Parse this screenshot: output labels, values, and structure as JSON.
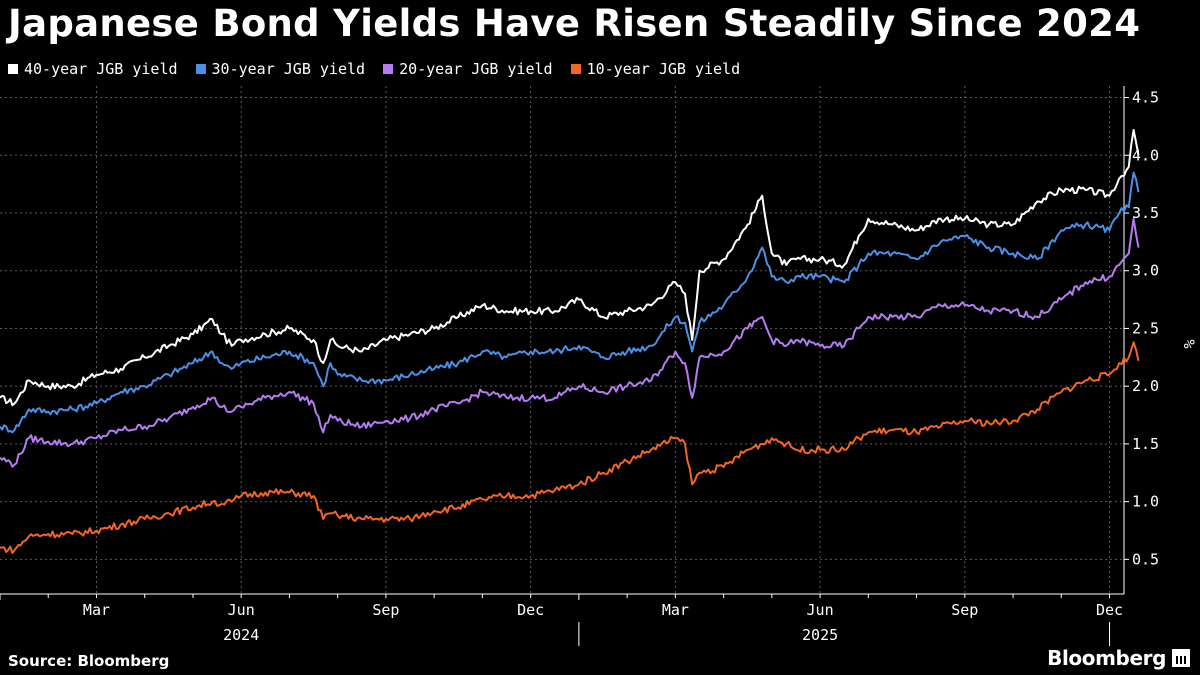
{
  "title": "Japanese Bond Yields Have Risen Steadily Since 2024",
  "source": "Source: Bloomberg",
  "brand": "Bloomberg",
  "chart_data": {
    "type": "line",
    "title": "Japanese Bond Yields Have Risen Steadily Since 2024",
    "ylabel": "%",
    "xlabel": "",
    "ylim": [
      0.2,
      4.6
    ],
    "xlim": [
      0,
      23.3
    ],
    "x_unit": "months since 2024-01-01",
    "y_ticks": [
      0.5,
      1.0,
      1.5,
      2.0,
      2.5,
      3.0,
      3.5,
      4.0,
      4.5
    ],
    "y_tick_labels": [
      "0.5",
      "1.0",
      "1.5",
      "2.0",
      "2.5",
      "3.0",
      "3.5",
      "4.0",
      "4.5"
    ],
    "x_ticks": [
      {
        "pos": 2,
        "label": "Mar"
      },
      {
        "pos": 5,
        "label": "Jun"
      },
      {
        "pos": 8,
        "label": "Sep"
      },
      {
        "pos": 11,
        "label": "Dec"
      },
      {
        "pos": 14,
        "label": "Mar"
      },
      {
        "pos": 17,
        "label": "Jun"
      },
      {
        "pos": 20,
        "label": "Sep"
      },
      {
        "pos": 23,
        "label": "Dec"
      }
    ],
    "x_years": [
      {
        "pos": 5,
        "label": "2024"
      },
      {
        "pos": 17,
        "label": "2025"
      }
    ],
    "year_boundary": 12,
    "grid": true,
    "legend": "top-left",
    "series": [
      {
        "name": "40-year JGB yield",
        "color": "#ffffff",
        "x": [
          0,
          0.3,
          0.6,
          1,
          1.5,
          2,
          2.5,
          3,
          3.5,
          4,
          4.4,
          4.6,
          4.8,
          5,
          5.5,
          6,
          6.5,
          6.7,
          6.85,
          7,
          7.5,
          8,
          8.5,
          9,
          9.5,
          10,
          10.5,
          11,
          11.5,
          12,
          12.5,
          13,
          13.5,
          14,
          14.2,
          14.35,
          14.5,
          15,
          15.5,
          15.8,
          16,
          16.3,
          16.5,
          17,
          17.5,
          17.8,
          18,
          18.5,
          19,
          19.5,
          20,
          20.5,
          21,
          21.5,
          22,
          22.5,
          23,
          23.2,
          23.4,
          23.5,
          23.6
        ],
        "y": [
          1.9,
          1.85,
          2.05,
          2.0,
          2.0,
          2.1,
          2.15,
          2.25,
          2.35,
          2.45,
          2.58,
          2.45,
          2.35,
          2.4,
          2.45,
          2.5,
          2.4,
          2.2,
          2.4,
          2.35,
          2.3,
          2.4,
          2.45,
          2.5,
          2.6,
          2.7,
          2.65,
          2.65,
          2.65,
          2.75,
          2.6,
          2.65,
          2.7,
          2.9,
          2.8,
          2.4,
          3.0,
          3.1,
          3.4,
          3.65,
          3.15,
          3.05,
          3.1,
          3.1,
          3.05,
          3.3,
          3.45,
          3.4,
          3.35,
          3.45,
          3.45,
          3.4,
          3.4,
          3.6,
          3.7,
          3.7,
          3.65,
          3.8,
          3.9,
          4.22,
          4.0
        ]
      },
      {
        "name": "30-year JGB yield",
        "color": "#4c8fe6",
        "x": [
          0,
          0.3,
          0.6,
          1,
          1.5,
          2,
          2.5,
          3,
          3.5,
          4,
          4.4,
          4.6,
          4.8,
          5,
          5.5,
          6,
          6.5,
          6.7,
          6.85,
          7,
          7.5,
          8,
          8.5,
          9,
          9.5,
          10,
          10.5,
          11,
          11.5,
          12,
          12.5,
          13,
          13.5,
          14,
          14.2,
          14.35,
          14.5,
          15,
          15.5,
          15.8,
          16,
          16.3,
          16.5,
          17,
          17.5,
          17.8,
          18,
          18.5,
          19,
          19.5,
          20,
          20.5,
          21,
          21.5,
          22,
          22.5,
          23,
          23.2,
          23.4,
          23.5,
          23.6
        ],
        "y": [
          1.65,
          1.62,
          1.8,
          1.78,
          1.8,
          1.85,
          1.95,
          2.0,
          2.1,
          2.2,
          2.3,
          2.2,
          2.15,
          2.2,
          2.25,
          2.3,
          2.2,
          2.0,
          2.2,
          2.1,
          2.05,
          2.05,
          2.1,
          2.15,
          2.2,
          2.3,
          2.25,
          2.3,
          2.3,
          2.35,
          2.25,
          2.3,
          2.35,
          2.6,
          2.55,
          2.3,
          2.55,
          2.7,
          2.95,
          3.2,
          2.95,
          2.9,
          2.95,
          2.95,
          2.9,
          3.05,
          3.15,
          3.15,
          3.1,
          3.25,
          3.3,
          3.2,
          3.15,
          3.1,
          3.35,
          3.4,
          3.35,
          3.5,
          3.55,
          3.85,
          3.68
        ]
      },
      {
        "name": "20-year JGB yield",
        "color": "#b47cf0",
        "x": [
          0,
          0.3,
          0.6,
          1,
          1.5,
          2,
          2.5,
          3,
          3.5,
          4,
          4.4,
          4.6,
          4.8,
          5,
          5.5,
          6,
          6.5,
          6.7,
          6.85,
          7,
          7.5,
          8,
          8.5,
          9,
          9.5,
          10,
          10.5,
          11,
          11.5,
          12,
          12.5,
          13,
          13.5,
          14,
          14.2,
          14.35,
          14.5,
          15,
          15.5,
          15.8,
          16,
          16.3,
          16.5,
          17,
          17.5,
          17.8,
          18,
          18.5,
          19,
          19.5,
          20,
          20.5,
          21,
          21.5,
          22,
          22.5,
          23,
          23.2,
          23.4,
          23.5,
          23.6
        ],
        "y": [
          1.38,
          1.32,
          1.55,
          1.52,
          1.5,
          1.55,
          1.62,
          1.65,
          1.72,
          1.82,
          1.9,
          1.82,
          1.78,
          1.82,
          1.9,
          1.95,
          1.85,
          1.6,
          1.75,
          1.7,
          1.65,
          1.7,
          1.72,
          1.8,
          1.85,
          1.95,
          1.9,
          1.9,
          1.9,
          2.0,
          1.95,
          2.0,
          2.05,
          2.3,
          2.2,
          1.9,
          2.25,
          2.3,
          2.5,
          2.6,
          2.4,
          2.35,
          2.4,
          2.35,
          2.35,
          2.5,
          2.6,
          2.6,
          2.6,
          2.7,
          2.7,
          2.65,
          2.65,
          2.6,
          2.75,
          2.9,
          2.95,
          3.05,
          3.15,
          3.45,
          3.2
        ]
      },
      {
        "name": "10-year JGB yield",
        "color": "#f26522",
        "x": [
          0,
          0.3,
          0.6,
          1,
          1.5,
          2,
          2.5,
          3,
          3.5,
          4,
          4.4,
          4.6,
          4.8,
          5,
          5.5,
          6,
          6.5,
          6.7,
          6.85,
          7,
          7.5,
          8,
          8.5,
          9,
          9.5,
          10,
          10.5,
          11,
          11.5,
          12,
          12.5,
          13,
          13.5,
          14,
          14.2,
          14.35,
          14.5,
          15,
          15.5,
          15.8,
          16,
          16.3,
          16.5,
          17,
          17.5,
          17.8,
          18,
          18.5,
          19,
          19.5,
          20,
          20.5,
          21,
          21.5,
          22,
          22.5,
          23,
          23.2,
          23.4,
          23.5,
          23.6
        ],
        "y": [
          0.6,
          0.58,
          0.7,
          0.72,
          0.72,
          0.75,
          0.8,
          0.85,
          0.9,
          0.95,
          1.0,
          0.98,
          1.0,
          1.05,
          1.08,
          1.08,
          1.05,
          0.85,
          0.9,
          0.88,
          0.85,
          0.85,
          0.85,
          0.92,
          0.95,
          1.02,
          1.05,
          1.05,
          1.1,
          1.15,
          1.25,
          1.35,
          1.45,
          1.55,
          1.5,
          1.15,
          1.25,
          1.3,
          1.45,
          1.5,
          1.55,
          1.5,
          1.45,
          1.45,
          1.45,
          1.55,
          1.6,
          1.62,
          1.6,
          1.65,
          1.7,
          1.68,
          1.7,
          1.8,
          1.95,
          2.05,
          2.1,
          2.2,
          2.25,
          2.38,
          2.22
        ]
      }
    ]
  }
}
